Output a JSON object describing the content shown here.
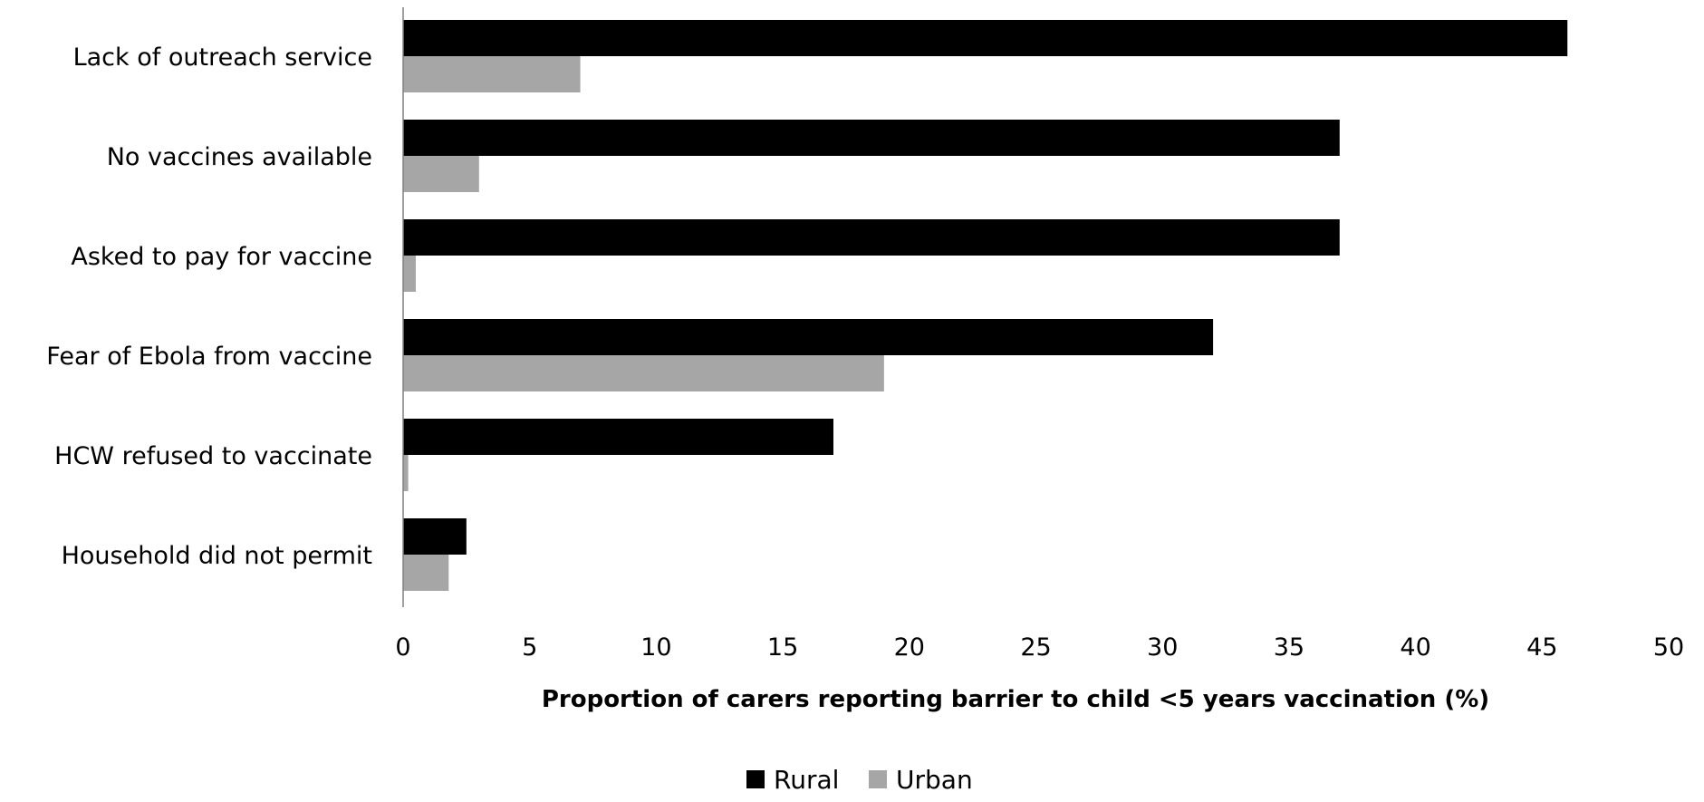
{
  "chart_data": {
    "type": "bar",
    "orientation": "horizontal",
    "categories": [
      "Lack of outreach service",
      "No vaccines available",
      "Asked to pay for vaccine",
      "Fear of Ebola from vaccine",
      "HCW refused to vaccinate",
      "Household did not permit"
    ],
    "series": [
      {
        "name": "Rural",
        "color": "#000000",
        "values": [
          46,
          37,
          37,
          32,
          17,
          2.5
        ]
      },
      {
        "name": "Urban",
        "color": "#a6a6a6",
        "values": [
          7,
          3,
          0.5,
          19,
          0.2,
          1.8
        ]
      }
    ],
    "xlabel": "Proportion of carers reporting barrier to child <5 years vaccination (%)",
    "ylabel": "",
    "xlim": [
      0,
      50
    ],
    "xticks": [
      "0",
      "5",
      "10",
      "15",
      "20",
      "25",
      "30",
      "35",
      "40",
      "45",
      "50"
    ],
    "grid": false,
    "legend_position": "bottom"
  }
}
